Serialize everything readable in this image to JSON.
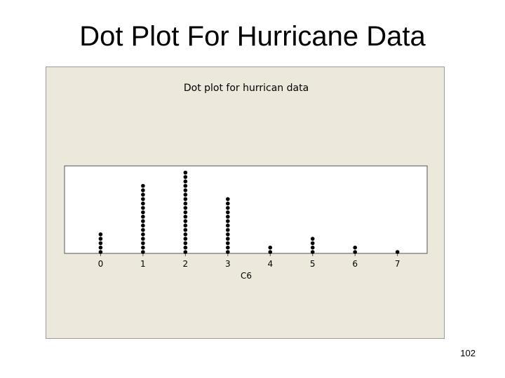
{
  "slide": {
    "title": "Dot Plot For Hurricane Data",
    "page_number": "102"
  },
  "chart_data": {
    "type": "scatter",
    "subtype": "dot-plot",
    "title": "Dot plot for hurrican data",
    "xlabel": "C6",
    "ylabel": "",
    "categories": [
      "0",
      "1",
      "2",
      "3",
      "4",
      "5",
      "6",
      "7"
    ],
    "x": [
      0,
      1,
      2,
      3,
      4,
      5,
      6,
      7
    ],
    "counts": [
      5,
      16,
      19,
      13,
      2,
      4,
      2,
      1
    ],
    "xlim": [
      -0.85,
      7.7
    ],
    "grid": false,
    "colors": {
      "panel_background": "#ece8dc",
      "plot_background": "#ffffff",
      "dot": "#000000"
    }
  }
}
